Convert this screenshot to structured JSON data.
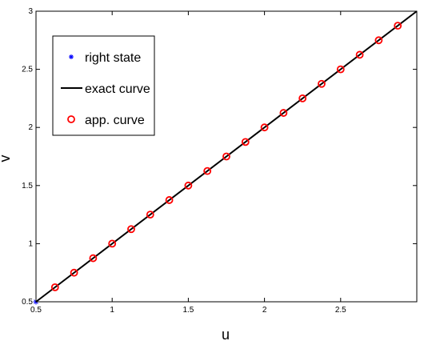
{
  "chart_data": {
    "type": "line",
    "title": "",
    "xlabel": "u",
    "ylabel": "v",
    "xlim": [
      0.5,
      3.0
    ],
    "ylim": [
      0.5,
      3.0
    ],
    "x_ticks": [
      0.5,
      1,
      1.5,
      2,
      2.5
    ],
    "x_tick_labels": [
      "0.5",
      "1",
      "1.5",
      "2",
      "2.5"
    ],
    "y_ticks": [
      0.5,
      1,
      1.5,
      2,
      2.5,
      3
    ],
    "y_tick_labels": [
      "0.5",
      "1",
      "1.5",
      "2",
      "2.5",
      "3"
    ],
    "grid": false,
    "legend_position": "top-left",
    "series": [
      {
        "name": "right state",
        "marker": "asterisk",
        "color": "#0000ff",
        "x": [
          0.5
        ],
        "y": [
          0.5
        ]
      },
      {
        "name": "exact curve",
        "marker": "none",
        "line": "solid",
        "color": "#000000",
        "x": [
          0.5,
          3.0
        ],
        "y": [
          0.5,
          3.0
        ]
      },
      {
        "name": "app. curve",
        "marker": "circle",
        "color": "#ff0000",
        "x": [
          0.625,
          0.75,
          0.875,
          1.0,
          1.125,
          1.25,
          1.375,
          1.5,
          1.625,
          1.75,
          1.875,
          2.0,
          2.125,
          2.25,
          2.375,
          2.5,
          2.625,
          2.75,
          2.875
        ],
        "y": [
          0.625,
          0.75,
          0.875,
          1.0,
          1.125,
          1.25,
          1.375,
          1.5,
          1.625,
          1.75,
          1.875,
          2.0,
          2.125,
          2.25,
          2.375,
          2.5,
          2.625,
          2.75,
          2.875
        ]
      }
    ]
  }
}
